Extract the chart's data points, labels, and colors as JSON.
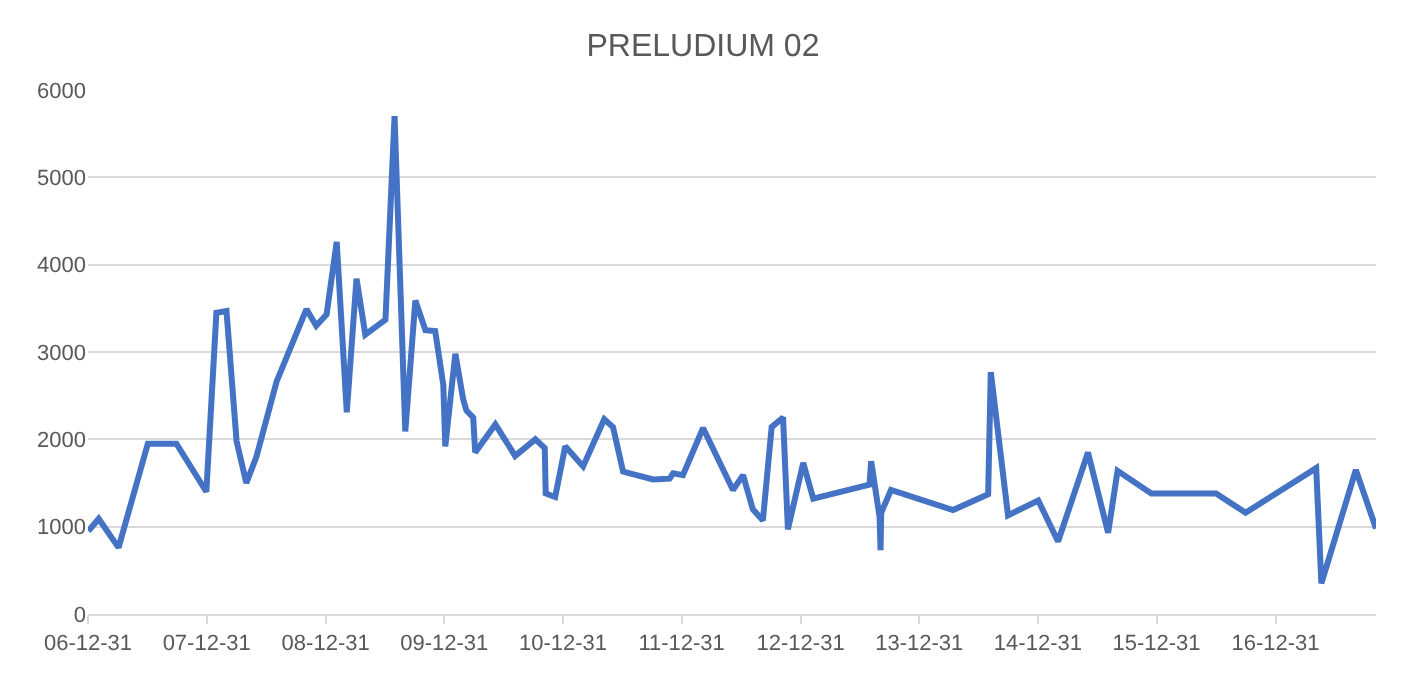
{
  "chart_data": {
    "type": "line",
    "title": "PRELUDIUM 02",
    "x": [
      "2007-01-01",
      "2007-02-02",
      "2007-04-04",
      "2007-07-03",
      "2007-09-29",
      "2007-12-30",
      "2008-01-30",
      "2008-03-01",
      "2008-04-01",
      "2008-05-01",
      "2008-06-01",
      "2008-08-02",
      "2008-11-02",
      "2008-12-02",
      "2009-01-03",
      "2009-02-03",
      "2009-03-06",
      "2009-04-05",
      "2009-05-02",
      "2009-07-03",
      "2009-07-31",
      "2009-09-02",
      "2009-10-03",
      "2009-11-03",
      "2009-12-03",
      "2009-12-28",
      "2010-01-03",
      "2010-02-03",
      "2010-02-27",
      "2010-03-09",
      "2010-03-30",
      "2010-04-05",
      "2010-06-06",
      "2010-08-06",
      "2010-10-07",
      "2010-11-05",
      "2010-11-08",
      "2010-12-07",
      "2011-01-07",
      "2011-03-03",
      "2011-05-07",
      "2011-06-03",
      "2011-07-04",
      "2011-10-04",
      "2011-11-24",
      "2011-12-05",
      "2012-01-04",
      "2012-03-06",
      "2012-06-06",
      "2012-07-07",
      "2012-08-06",
      "2012-09-06",
      "2012-10-03",
      "2012-11-07",
      "2012-11-22",
      "2013-01-08",
      "2013-02-08",
      "2013-07-31",
      "2013-08-05",
      "2013-08-31",
      "2013-09-03",
      "2013-09-05",
      "2013-10-05",
      "2014-04-14",
      "2014-07-31",
      "2014-08-08",
      "2014-09-30",
      "2015-01-01",
      "2015-03-03",
      "2015-06-03",
      "2015-08-04",
      "2015-09-02",
      "2015-12-15",
      "2016-07-01",
      "2016-09-30",
      "2017-05-05",
      "2017-05-21",
      "2017-09-04",
      "2017-11-05"
    ],
    "series": [
      {
        "color": "#4472c4",
        "values": [
          950,
          1090,
          760,
          1950,
          1950,
          1400,
          3450,
          3470,
          1980,
          1500,
          1800,
          2660,
          3490,
          3300,
          3430,
          4260,
          2310,
          3840,
          3200,
          3370,
          5700,
          2090,
          3590,
          3250,
          3240,
          2620,
          1920,
          2980,
          2460,
          2330,
          2250,
          1850,
          2170,
          1810,
          2000,
          1900,
          1380,
          1340,
          1920,
          1690,
          2230,
          2140,
          1630,
          1540,
          1550,
          1610,
          1590,
          2130,
          1420,
          1590,
          1200,
          1070,
          2140,
          2250,
          970,
          1730,
          1320,
          1480,
          1750,
          1110,
          730,
          1160,
          1420,
          1190,
          1370,
          2770,
          1130,
          1300,
          830,
          1850,
          930,
          1640,
          1380,
          1380,
          1160,
          1670,
          350,
          1650,
          980
        ]
      }
    ],
    "xlim": [
      "2006-12-31",
      "2017-11-05"
    ],
    "xticks": [
      {
        "value": "2006-12-31",
        "label": "06-12-31"
      },
      {
        "value": "2007-12-31",
        "label": "07-12-31"
      },
      {
        "value": "2008-12-31",
        "label": "08-12-31"
      },
      {
        "value": "2009-12-31",
        "label": "09-12-31"
      },
      {
        "value": "2010-12-31",
        "label": "10-12-31"
      },
      {
        "value": "2011-12-31",
        "label": "11-12-31"
      },
      {
        "value": "2012-12-31",
        "label": "12-12-31"
      },
      {
        "value": "2013-12-31",
        "label": "13-12-31"
      },
      {
        "value": "2014-12-31",
        "label": "14-12-31"
      },
      {
        "value": "2015-12-31",
        "label": "15-12-31"
      },
      {
        "value": "2016-12-31",
        "label": "16-12-31"
      }
    ],
    "ylim": [
      0,
      6000
    ],
    "yticks": [
      0,
      1000,
      2000,
      3000,
      4000,
      5000,
      6000
    ],
    "grid": "y",
    "marker": "none",
    "line_style": "solid"
  }
}
